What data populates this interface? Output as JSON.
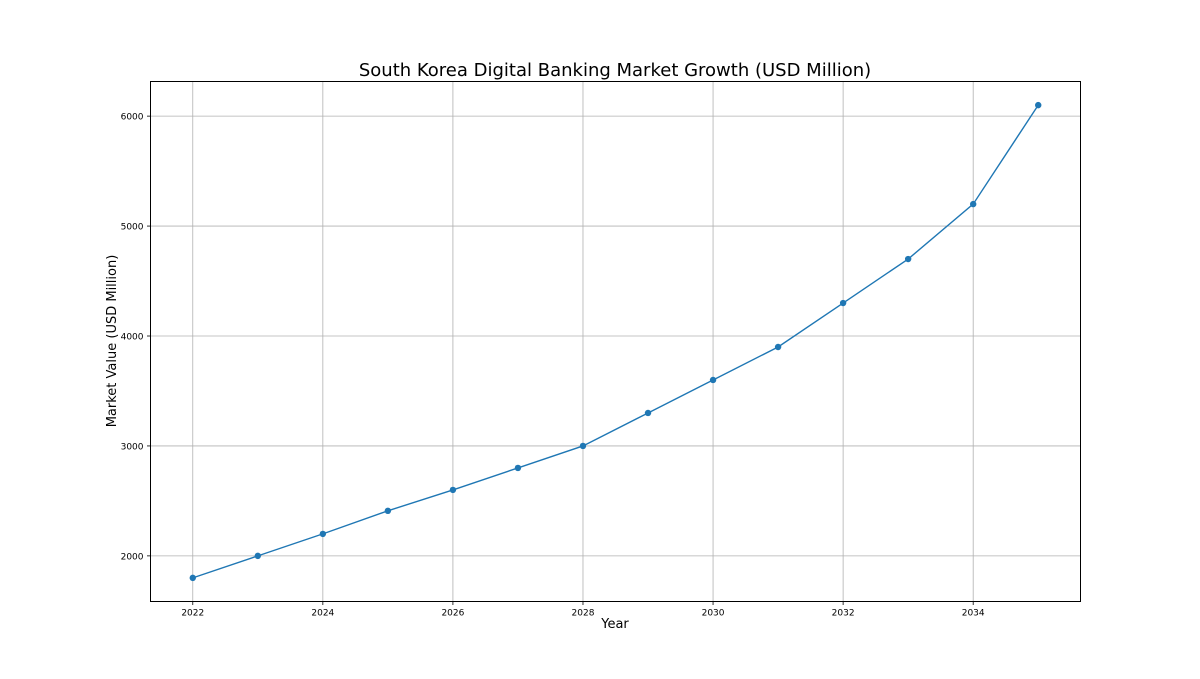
{
  "chart_data": {
    "type": "line",
    "title": "South Korea Digital Banking Market Growth (USD Million)",
    "xlabel": "Year",
    "ylabel": "Market Value (USD Million)",
    "x": [
      2022,
      2023,
      2024,
      2025,
      2026,
      2027,
      2028,
      2029,
      2030,
      2031,
      2032,
      2033,
      2034,
      2035
    ],
    "series": [
      {
        "name": "Market Value",
        "color": "#1f77b4",
        "values": [
          1800,
          2000,
          2200,
          2410,
          2600,
          2800,
          3000,
          3300,
          3600,
          3900,
          4300,
          4700,
          5200,
          6100
        ]
      }
    ],
    "xlim": [
      2021.35,
      2035.65
    ],
    "ylim": [
      1585,
      6315
    ],
    "xticks": [
      "2022",
      "2024",
      "2026",
      "2028",
      "2030",
      "2032",
      "2034"
    ],
    "yticks": [
      "2000",
      "3000",
      "4000",
      "5000",
      "6000"
    ],
    "grid": true,
    "marker": "circle"
  }
}
